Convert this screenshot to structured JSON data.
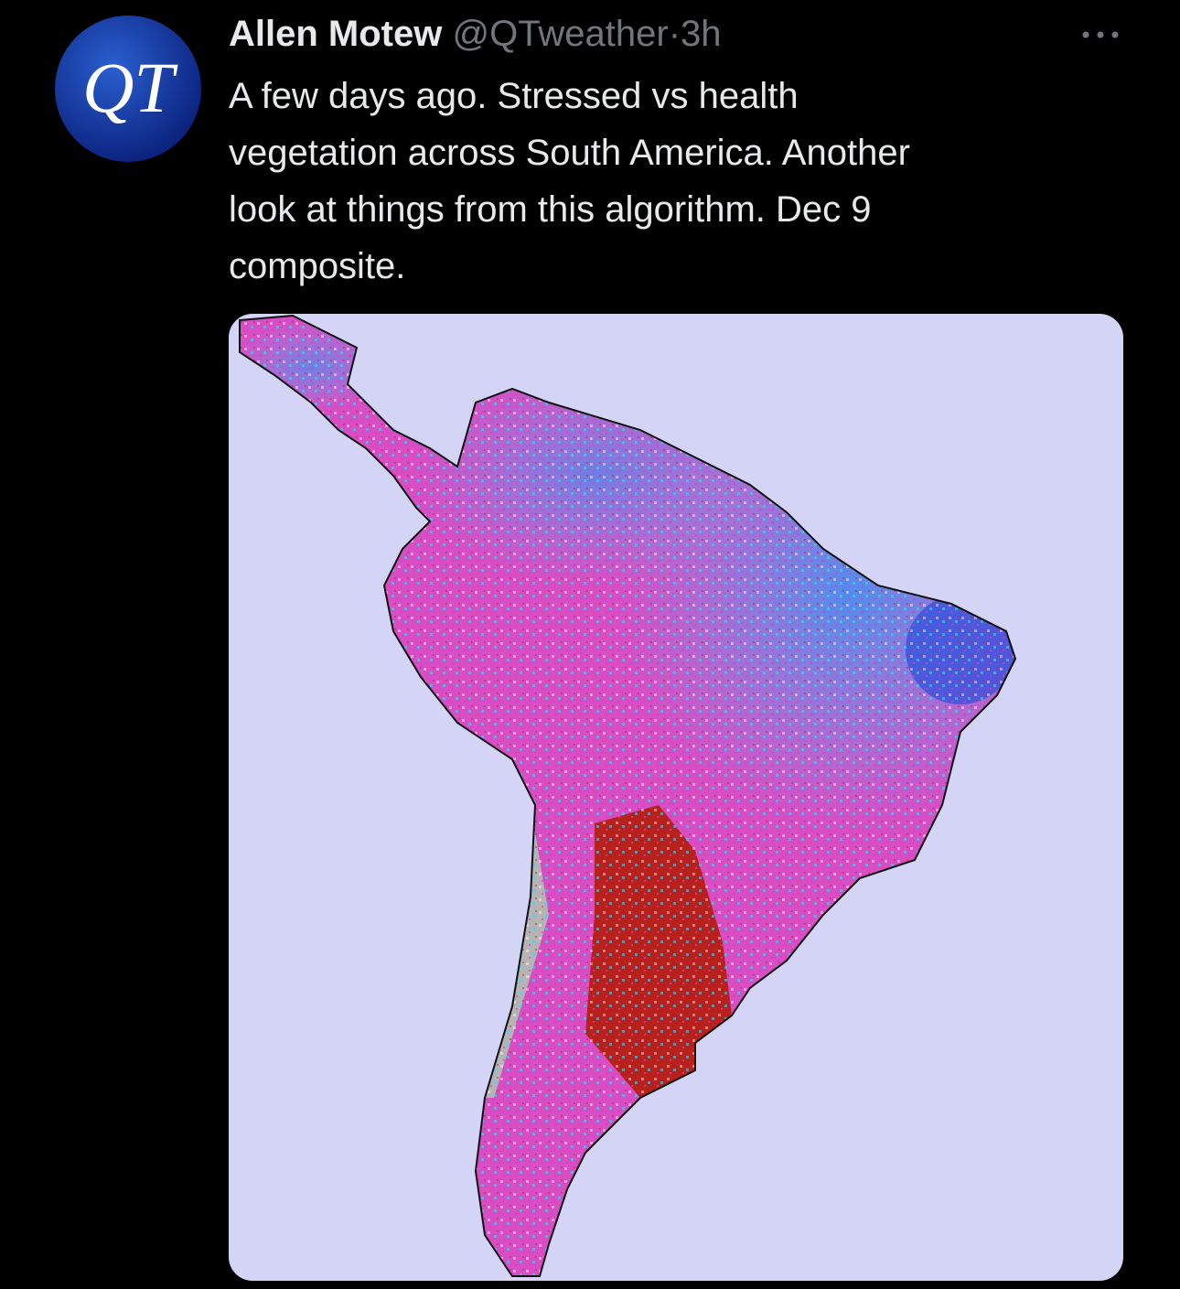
{
  "avatar": {
    "label": "QT"
  },
  "tweet": {
    "author": "Allen Motew",
    "handle": "@QTweather",
    "separator": "·",
    "time": "3h",
    "text_lines": [
      "A few days ago. Stressed vs health",
      "vegetation across South America. Another",
      "look at things from this algorithm. Dec 9",
      "composite."
    ]
  }
}
